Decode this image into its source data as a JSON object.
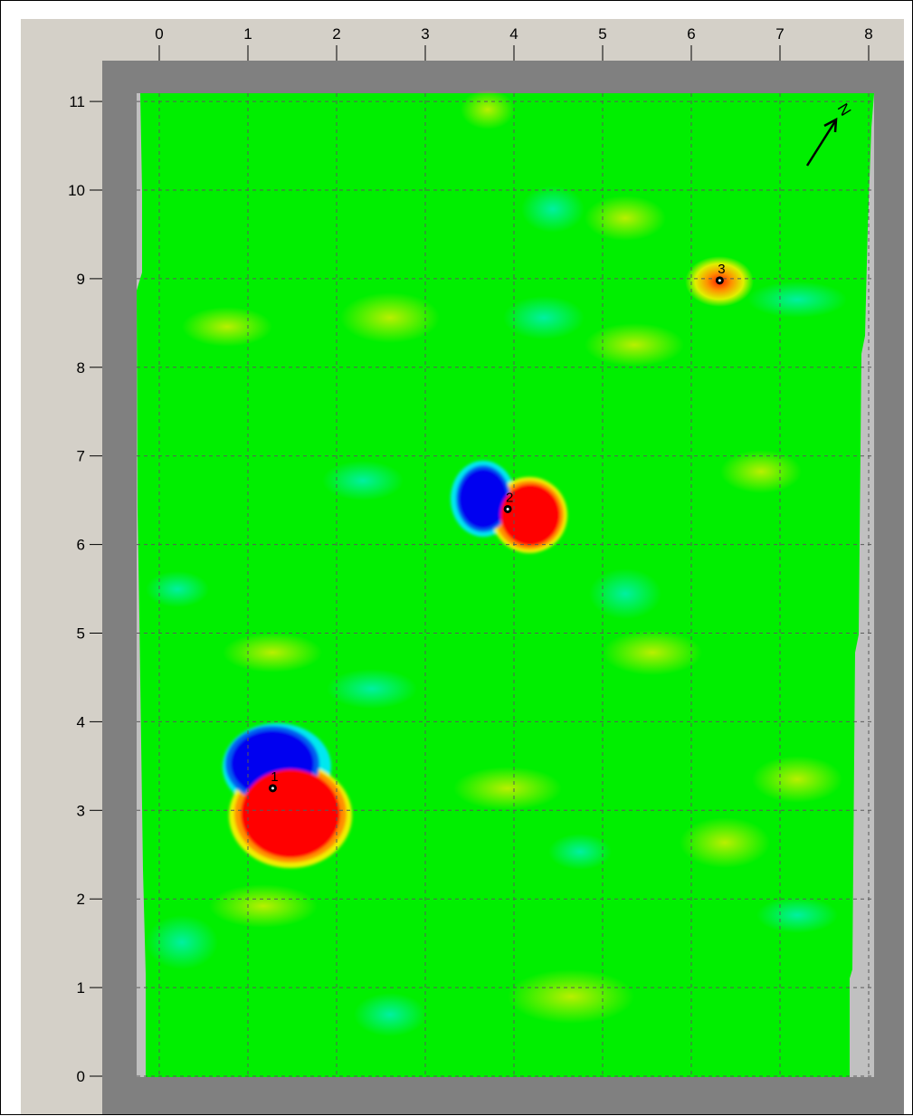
{
  "map": {
    "x_ticks": [
      "0",
      "1",
      "2",
      "3",
      "4",
      "5",
      "6",
      "7",
      "8"
    ],
    "y_ticks": [
      "0",
      "1",
      "2",
      "3",
      "4",
      "5",
      "6",
      "7",
      "8",
      "9",
      "10",
      "11"
    ],
    "x_range": [
      0,
      8
    ],
    "y_range": [
      0,
      11
    ],
    "grid": "dashed",
    "north_arrow_label": "N",
    "colors": {
      "background_field": "#00f000",
      "positive_anomaly": "#ff0000",
      "negative_anomaly": "#0000f0",
      "mid_high": "#a8f000",
      "mid_low": "#00f088",
      "weak_positive": "#ff9000",
      "frame_gray": "#808080",
      "panel": "#d4d0c8"
    },
    "markers": [
      {
        "label": "1",
        "x": 1.28,
        "y": 3.25
      },
      {
        "label": "2",
        "x": 3.93,
        "y": 6.4
      },
      {
        "label": "3",
        "x": 6.32,
        "y": 8.98
      }
    ]
  }
}
